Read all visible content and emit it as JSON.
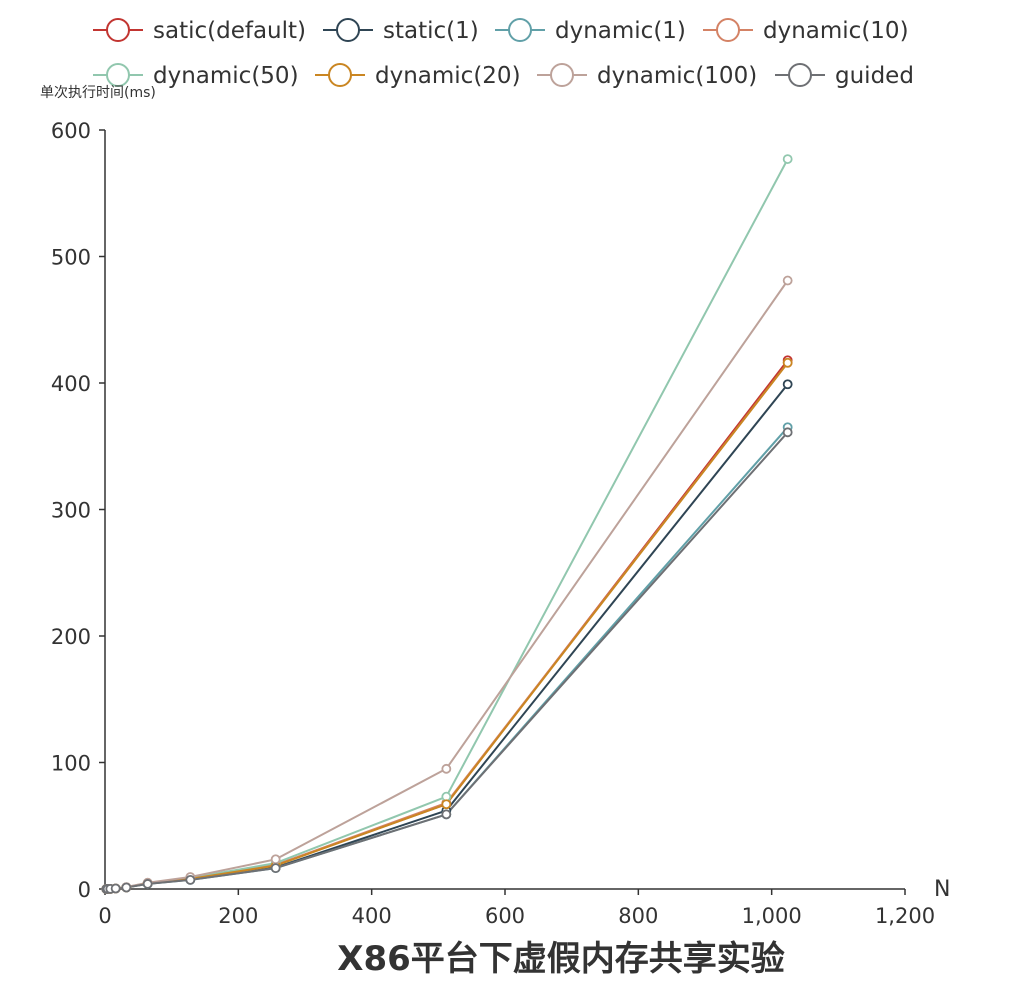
{
  "chart_data": {
    "type": "line",
    "title": "X86平台下虚假内存共享实验",
    "ylabel": "单次执行时间(ms)",
    "xlabel": "N",
    "xlim": [
      0,
      1200
    ],
    "ylim": [
      0,
      600
    ],
    "x_ticks": [
      "0",
      "200",
      "400",
      "600",
      "800",
      "1,000",
      "1,200"
    ],
    "y_ticks": [
      "0",
      "100",
      "200",
      "300",
      "400",
      "500",
      "600"
    ],
    "grid": false,
    "legend_position": "top",
    "x": [
      2,
      4,
      8,
      16,
      32,
      64,
      128,
      256,
      512,
      1024
    ],
    "series": [
      {
        "name": "satic(default)",
        "color": "#c23531",
        "values": [
          0.01,
          0.03,
          0.1,
          0.4,
          1.3,
          4.5,
          8,
          19,
          67,
          418
        ]
      },
      {
        "name": "static(1)",
        "color": "#2f4554",
        "values": [
          0.01,
          0.03,
          0.1,
          0.4,
          1.3,
          4.2,
          7.5,
          17,
          62,
          399
        ]
      },
      {
        "name": "dynamic(1)",
        "color": "#61a0a8",
        "values": [
          0.01,
          0.03,
          0.1,
          0.4,
          1.2,
          4.0,
          7.2,
          16.5,
          59,
          365
        ]
      },
      {
        "name": "dynamic(10)",
        "color": "#d48265",
        "values": [
          0.01,
          0.03,
          0.1,
          0.4,
          1.3,
          4.5,
          8.2,
          19,
          68,
          416
        ]
      },
      {
        "name": "dynamic(50)",
        "color": "#91c7ae",
        "values": [
          0.01,
          0.03,
          0.1,
          0.4,
          1.4,
          4.8,
          8.7,
          20.5,
          73,
          577
        ]
      },
      {
        "name": "dynamic(20)",
        "color": "#ca8622",
        "values": [
          0.01,
          0.03,
          0.1,
          0.4,
          1.3,
          4.4,
          8.0,
          18.5,
          67,
          416
        ]
      },
      {
        "name": "dynamic(100)",
        "color": "#bda29a",
        "values": [
          0.01,
          0.03,
          0.1,
          0.4,
          1.5,
          5.0,
          9.5,
          23.5,
          95,
          481
        ]
      },
      {
        "name": "guided",
        "color": "#6e7074",
        "values": [
          0.01,
          0.03,
          0.1,
          0.4,
          1.2,
          4.0,
          7.2,
          16.5,
          59,
          361
        ]
      }
    ]
  }
}
